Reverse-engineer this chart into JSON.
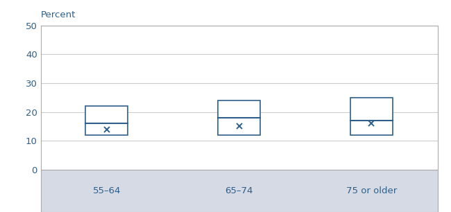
{
  "categories": [
    "55–64",
    "65–74",
    "75 or older"
  ],
  "boxes": [
    {
      "q1": 12,
      "median": 16,
      "q3": 22,
      "mean": 14
    },
    {
      "q1": 12,
      "median": 18,
      "q3": 24,
      "mean": 15
    },
    {
      "q1": 12,
      "median": 17,
      "q3": 25,
      "mean": 16
    }
  ],
  "ylabel_text": "Percent",
  "ylim": [
    0,
    50
  ],
  "yticks": [
    0,
    10,
    20,
    30,
    40,
    50
  ],
  "box_color": "#2e5f8a",
  "box_face": "#ffffff",
  "mean_color": "#2e5f8a",
  "grid_color": "#cccccc",
  "spine_color": "#aaaaaa",
  "axis_label_color": "#2e5f8a",
  "xlabel_bg_color": "#d6dae5",
  "box_width": 0.32,
  "positions": [
    1,
    2,
    3
  ],
  "xlim": [
    0.5,
    3.5
  ]
}
